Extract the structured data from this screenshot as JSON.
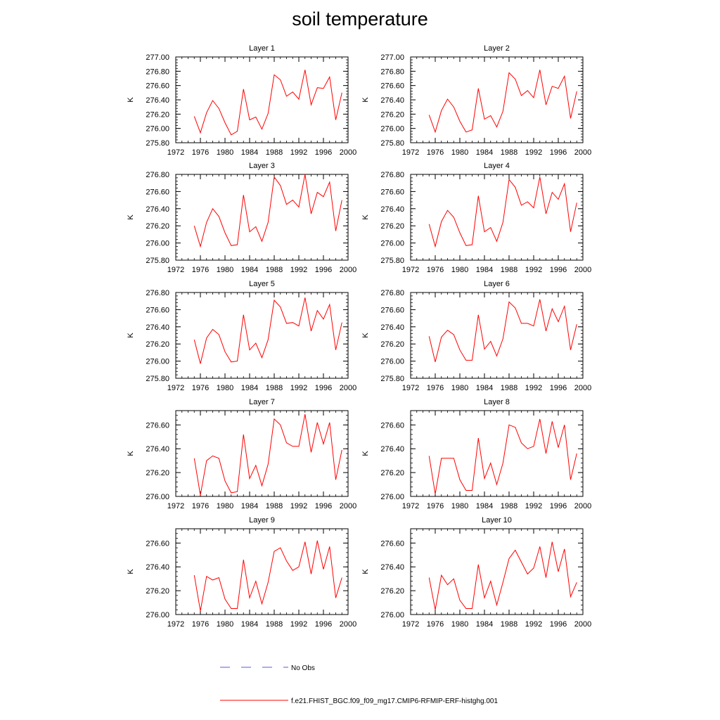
{
  "title": "soil temperature",
  "legend": {
    "obs_label": "No Obs",
    "obs_color": "#5b5bd6",
    "model_label": "f.e21.FHIST_BGC.f09_f09_mg17.CMIP6-RFMIP-ERF-histghg.001",
    "model_color": "#ff0000"
  },
  "chart_data": [
    {
      "type": "line",
      "title": "Layer 1",
      "xlabel": "",
      "ylabel": "K",
      "xlim": [
        1972,
        2000
      ],
      "ylim": [
        275.8,
        277.0
      ],
      "xticks": [
        1972,
        1976,
        1980,
        1984,
        1988,
        1992,
        1996,
        2000
      ],
      "yticks": [
        "275.80",
        "276.00",
        "276.20",
        "276.40",
        "276.60",
        "276.80",
        "277.00"
      ],
      "x": [
        1975,
        1976,
        1977,
        1978,
        1979,
        1980,
        1981,
        1982,
        1983,
        1984,
        1985,
        1986,
        1987,
        1988,
        1989,
        1990,
        1991,
        1992,
        1993,
        1994,
        1995,
        1996,
        1997,
        1998,
        1999
      ],
      "series": [
        {
          "name": "f.e21.FHIST_BGC.f09_f09_mg17.CMIP6-RFMIP-ERF-histghg.001",
          "values": [
            276.17,
            275.94,
            276.22,
            276.39,
            276.28,
            276.08,
            275.91,
            275.96,
            276.55,
            276.12,
            276.16,
            275.99,
            276.21,
            276.75,
            276.68,
            276.45,
            276.51,
            276.41,
            276.82,
            276.33,
            276.57,
            276.56,
            276.72,
            276.12,
            276.5
          ]
        }
      ]
    },
    {
      "type": "line",
      "title": "Layer 2",
      "xlabel": "",
      "ylabel": "K",
      "xlim": [
        1972,
        2000
      ],
      "ylim": [
        275.8,
        277.0
      ],
      "xticks": [
        1972,
        1976,
        1980,
        1984,
        1988,
        1992,
        1996,
        2000
      ],
      "yticks": [
        "275.80",
        "276.00",
        "276.20",
        "276.40",
        "276.60",
        "276.80",
        "277.00"
      ],
      "x": [
        1975,
        1976,
        1977,
        1978,
        1979,
        1980,
        1981,
        1982,
        1983,
        1984,
        1985,
        1986,
        1987,
        1988,
        1989,
        1990,
        1991,
        1992,
        1993,
        1994,
        1995,
        1996,
        1997,
        1998,
        1999
      ],
      "series": [
        {
          "name": "f.e21.FHIST_BGC.f09_f09_mg17.CMIP6-RFMIP-ERF-histghg.001",
          "values": [
            276.19,
            275.95,
            276.25,
            276.41,
            276.3,
            276.1,
            275.95,
            275.98,
            276.56,
            276.13,
            276.18,
            276.02,
            276.24,
            276.78,
            276.69,
            276.46,
            276.53,
            276.43,
            276.82,
            276.33,
            276.59,
            276.56,
            276.73,
            276.14,
            276.52
          ]
        }
      ]
    },
    {
      "type": "line",
      "title": "Layer 3",
      "xlabel": "",
      "ylabel": "K",
      "xlim": [
        1972,
        2000
      ],
      "ylim": [
        275.8,
        276.8
      ],
      "xticks": [
        1972,
        1976,
        1980,
        1984,
        1988,
        1992,
        1996,
        2000
      ],
      "yticks": [
        "275.80",
        "276.00",
        "276.20",
        "276.40",
        "276.60",
        "276.80"
      ],
      "x": [
        1975,
        1976,
        1977,
        1978,
        1979,
        1980,
        1981,
        1982,
        1983,
        1984,
        1985,
        1986,
        1987,
        1988,
        1989,
        1990,
        1991,
        1992,
        1993,
        1994,
        1995,
        1996,
        1997,
        1998,
        1999
      ],
      "series": [
        {
          "name": "f.e21.FHIST_BGC.f09_f09_mg17.CMIP6-RFMIP-ERF-histghg.001",
          "values": [
            276.2,
            275.96,
            276.24,
            276.4,
            276.31,
            276.12,
            275.97,
            275.98,
            276.56,
            276.13,
            276.19,
            276.02,
            276.24,
            276.77,
            276.67,
            276.45,
            276.5,
            276.42,
            276.8,
            276.34,
            276.59,
            276.54,
            276.71,
            276.14,
            276.5
          ]
        }
      ]
    },
    {
      "type": "line",
      "title": "Layer 4",
      "xlabel": "",
      "ylabel": "K",
      "xlim": [
        1972,
        2000
      ],
      "ylim": [
        275.8,
        276.8
      ],
      "xticks": [
        1972,
        1976,
        1980,
        1984,
        1988,
        1992,
        1996,
        2000
      ],
      "yticks": [
        "275.80",
        "276.00",
        "276.20",
        "276.40",
        "276.60",
        "276.80"
      ],
      "x": [
        1975,
        1976,
        1977,
        1978,
        1979,
        1980,
        1981,
        1982,
        1983,
        1984,
        1985,
        1986,
        1987,
        1988,
        1989,
        1990,
        1991,
        1992,
        1993,
        1994,
        1995,
        1996,
        1997,
        1998,
        1999
      ],
      "series": [
        {
          "name": "f.e21.FHIST_BGC.f09_f09_mg17.CMIP6-RFMIP-ERF-histghg.001",
          "values": [
            276.22,
            275.96,
            276.25,
            276.38,
            276.3,
            276.12,
            275.97,
            275.98,
            276.55,
            276.13,
            276.18,
            276.02,
            276.24,
            276.74,
            276.65,
            276.44,
            276.48,
            276.41,
            276.77,
            276.34,
            276.59,
            276.51,
            276.69,
            276.13,
            276.47
          ]
        }
      ]
    },
    {
      "type": "line",
      "title": "Layer 5",
      "xlabel": "",
      "ylabel": "K",
      "xlim": [
        1972,
        2000
      ],
      "ylim": [
        275.8,
        276.8
      ],
      "xticks": [
        1972,
        1976,
        1980,
        1984,
        1988,
        1992,
        1996,
        2000
      ],
      "yticks": [
        "275.80",
        "276.00",
        "276.20",
        "276.40",
        "276.60",
        "276.80"
      ],
      "x": [
        1975,
        1976,
        1977,
        1978,
        1979,
        1980,
        1981,
        1982,
        1983,
        1984,
        1985,
        1986,
        1987,
        1988,
        1989,
        1990,
        1991,
        1992,
        1993,
        1994,
        1995,
        1996,
        1997,
        1998,
        1999
      ],
      "series": [
        {
          "name": "f.e21.FHIST_BGC.f09_f09_mg17.CMIP6-RFMIP-ERF-histghg.001",
          "values": [
            276.25,
            275.97,
            276.27,
            276.37,
            276.31,
            276.11,
            275.99,
            276.0,
            276.54,
            276.13,
            276.21,
            276.04,
            276.25,
            276.71,
            276.63,
            276.44,
            276.45,
            276.41,
            276.74,
            276.35,
            276.59,
            276.49,
            276.66,
            276.13,
            276.45
          ]
        }
      ]
    },
    {
      "type": "line",
      "title": "Layer 6",
      "xlabel": "",
      "ylabel": "K",
      "xlim": [
        1972,
        2000
      ],
      "ylim": [
        275.8,
        276.8
      ],
      "xticks": [
        1972,
        1976,
        1980,
        1984,
        1988,
        1992,
        1996,
        2000
      ],
      "yticks": [
        "275.80",
        "276.00",
        "276.20",
        "276.40",
        "276.60",
        "276.80"
      ],
      "x": [
        1975,
        1976,
        1977,
        1978,
        1979,
        1980,
        1981,
        1982,
        1983,
        1984,
        1985,
        1986,
        1987,
        1988,
        1989,
        1990,
        1991,
        1992,
        1993,
        1994,
        1995,
        1996,
        1997,
        1998,
        1999
      ],
      "series": [
        {
          "name": "f.e21.FHIST_BGC.f09_f09_mg17.CMIP6-RFMIP-ERF-histghg.001",
          "values": [
            276.29,
            275.99,
            276.28,
            276.36,
            276.31,
            276.13,
            276.01,
            276.01,
            276.54,
            276.14,
            276.23,
            276.06,
            276.26,
            276.69,
            276.62,
            276.44,
            276.44,
            276.41,
            276.72,
            276.35,
            276.61,
            276.46,
            276.64,
            276.13,
            276.43
          ]
        }
      ]
    },
    {
      "type": "line",
      "title": "Layer 7",
      "xlabel": "",
      "ylabel": "K",
      "xlim": [
        1972,
        2000
      ],
      "ylim": [
        276.0,
        276.72
      ],
      "xticks": [
        1972,
        1976,
        1980,
        1984,
        1988,
        1992,
        1996,
        2000
      ],
      "yticks": [
        "276.00",
        "276.20",
        "276.40",
        "276.60"
      ],
      "x": [
        1975,
        1976,
        1977,
        1978,
        1979,
        1980,
        1981,
        1982,
        1983,
        1984,
        1985,
        1986,
        1987,
        1988,
        1989,
        1990,
        1991,
        1992,
        1993,
        1994,
        1995,
        1996,
        1997,
        1998,
        1999
      ],
      "series": [
        {
          "name": "f.e21.FHIST_BGC.f09_f09_mg17.CMIP6-RFMIP-ERF-histghg.001",
          "values": [
            276.32,
            276.01,
            276.3,
            276.34,
            276.32,
            276.13,
            276.03,
            276.04,
            276.52,
            276.15,
            276.26,
            276.09,
            276.27,
            276.65,
            276.6,
            276.45,
            276.42,
            276.42,
            276.69,
            276.37,
            276.62,
            276.44,
            276.62,
            276.14,
            276.39
          ]
        }
      ]
    },
    {
      "type": "line",
      "title": "Layer 8",
      "xlabel": "",
      "ylabel": "K",
      "xlim": [
        1972,
        2000
      ],
      "ylim": [
        276.0,
        276.72
      ],
      "xticks": [
        1972,
        1976,
        1980,
        1984,
        1988,
        1992,
        1996,
        2000
      ],
      "yticks": [
        "276.00",
        "276.20",
        "276.40",
        "276.60"
      ],
      "x": [
        1975,
        1976,
        1977,
        1978,
        1979,
        1980,
        1981,
        1982,
        1983,
        1984,
        1985,
        1986,
        1987,
        1988,
        1989,
        1990,
        1991,
        1992,
        1993,
        1994,
        1995,
        1996,
        1997,
        1998,
        1999
      ],
      "series": [
        {
          "name": "f.e21.FHIST_BGC.f09_f09_mg17.CMIP6-RFMIP-ERF-histghg.001",
          "values": [
            276.34,
            276.02,
            276.32,
            276.32,
            276.32,
            276.14,
            276.05,
            276.05,
            276.49,
            276.15,
            276.28,
            276.1,
            276.28,
            276.6,
            276.58,
            276.45,
            276.4,
            276.42,
            276.65,
            276.36,
            276.63,
            276.41,
            276.6,
            276.14,
            276.36
          ]
        }
      ]
    },
    {
      "type": "line",
      "title": "Layer 9",
      "xlabel": "",
      "ylabel": "K",
      "xlim": [
        1972,
        2000
      ],
      "ylim": [
        276.0,
        276.72
      ],
      "xticks": [
        1972,
        1976,
        1980,
        1984,
        1988,
        1992,
        1996,
        2000
      ],
      "yticks": [
        "276.00",
        "276.20",
        "276.40",
        "276.60"
      ],
      "x": [
        1975,
        1976,
        1977,
        1978,
        1979,
        1980,
        1981,
        1982,
        1983,
        1984,
        1985,
        1986,
        1987,
        1988,
        1989,
        1990,
        1991,
        1992,
        1993,
        1994,
        1995,
        1996,
        1997,
        1998,
        1999
      ],
      "series": [
        {
          "name": "f.e21.FHIST_BGC.f09_f09_mg17.CMIP6-RFMIP-ERF-histghg.001",
          "values": [
            276.33,
            276.03,
            276.32,
            276.29,
            276.31,
            276.13,
            276.05,
            276.05,
            276.46,
            276.14,
            276.28,
            276.09,
            276.27,
            276.53,
            276.56,
            276.45,
            276.37,
            276.4,
            276.61,
            276.34,
            276.62,
            276.38,
            276.57,
            276.14,
            276.31
          ]
        }
      ]
    },
    {
      "type": "line",
      "title": "Layer 10",
      "xlabel": "",
      "ylabel": "K",
      "xlim": [
        1972,
        2000
      ],
      "ylim": [
        276.0,
        276.72
      ],
      "xticks": [
        1972,
        1976,
        1980,
        1984,
        1988,
        1992,
        1996,
        2000
      ],
      "yticks": [
        "276.00",
        "276.20",
        "276.40",
        "276.60"
      ],
      "x": [
        1975,
        1976,
        1977,
        1978,
        1979,
        1980,
        1981,
        1982,
        1983,
        1984,
        1985,
        1986,
        1987,
        1988,
        1989,
        1990,
        1991,
        1992,
        1993,
        1994,
        1995,
        1996,
        1997,
        1998,
        1999
      ],
      "series": [
        {
          "name": "f.e21.FHIST_BGC.f09_f09_mg17.CMIP6-RFMIP-ERF-histghg.001",
          "values": [
            276.31,
            276.04,
            276.33,
            276.25,
            276.3,
            276.12,
            276.05,
            276.05,
            276.42,
            276.14,
            276.28,
            276.08,
            276.27,
            276.47,
            276.54,
            276.44,
            276.34,
            276.39,
            276.57,
            276.31,
            276.61,
            276.36,
            276.55,
            276.15,
            276.27
          ]
        }
      ]
    }
  ]
}
